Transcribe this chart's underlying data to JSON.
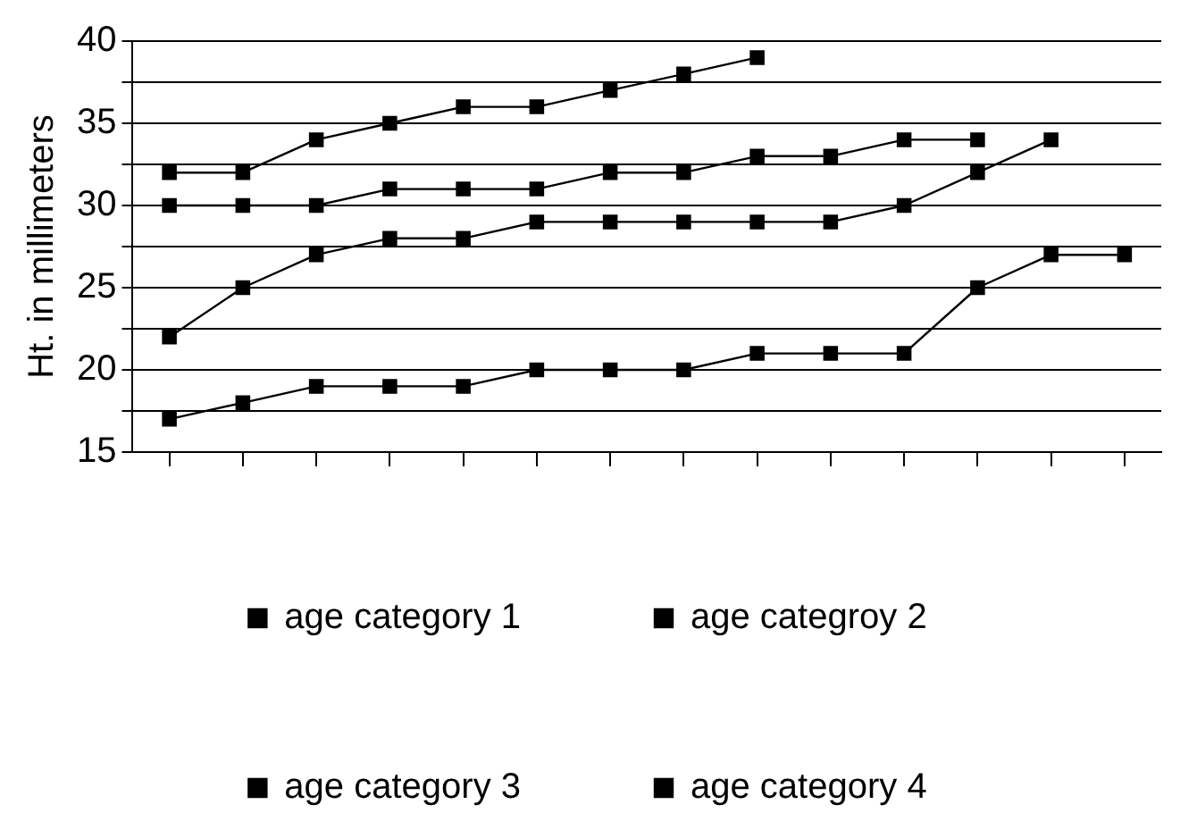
{
  "chart_data": {
    "type": "line",
    "ylabel": "Ht. in millimeters",
    "categories": [
      null,
      null,
      null,
      null,
      null,
      null,
      null,
      null,
      null,
      null,
      null,
      null,
      null,
      null
    ],
    "series": [
      {
        "name": "age category 1",
        "color": "#000000",
        "values": [
          17,
          18,
          19,
          19,
          19,
          20,
          20,
          20,
          21,
          21,
          21,
          25,
          27,
          27
        ]
      },
      {
        "name": "age categroy 2",
        "color": "#000000",
        "values": [
          22,
          25,
          27,
          28,
          28,
          29,
          29,
          29,
          29,
          29,
          30,
          32,
          34,
          null
        ]
      },
      {
        "name": "age category 3",
        "color": "#000000",
        "values": [
          30,
          30,
          30,
          31,
          31,
          31,
          32,
          32,
          33,
          33,
          34,
          34,
          null,
          null
        ]
      },
      {
        "name": "age category 4",
        "color": "#000000",
        "values": [
          32,
          32,
          34,
          35,
          36,
          36,
          37,
          38,
          39,
          null,
          null,
          null,
          null,
          null
        ]
      }
    ],
    "ylim": [
      15,
      40
    ],
    "yticks": [
      15,
      {
        "value": 17.5,
        "label": null
      },
      20,
      {
        "value": 22.5,
        "label": null
      },
      25,
      {
        "value": 27.5,
        "label": null
      },
      30,
      {
        "value": 32.5,
        "label": null
      },
      35,
      {
        "value": 37.5,
        "label": null
      },
      40
    ],
    "grid": "y",
    "legend": "bottom",
    "marker": "square",
    "line_style": "solid",
    "tick_labels": "y"
  }
}
